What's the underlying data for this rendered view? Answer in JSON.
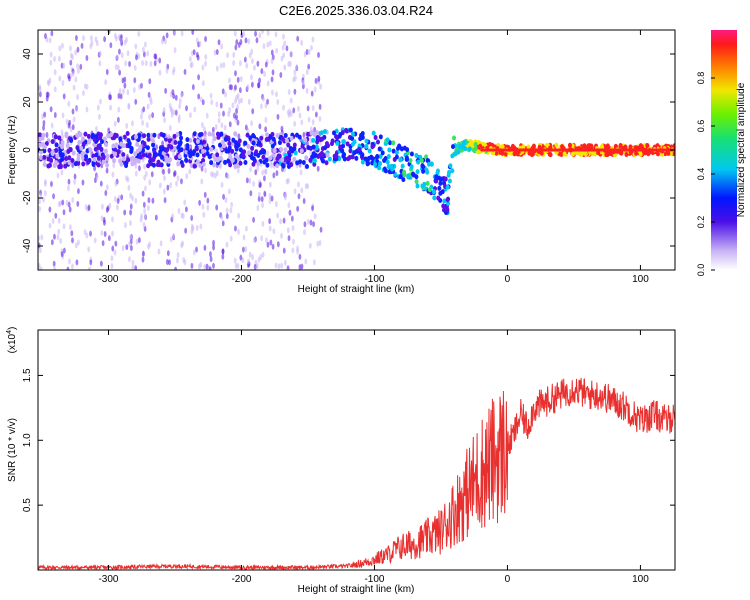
{
  "figure": {
    "title": "C2E6.2025.336.03.04.R24"
  },
  "chart_data": [
    {
      "type": "heatmap",
      "title": "C2E6.2025.336.03.04.R24",
      "xlabel": "Height of straight line (km)",
      "ylabel": "Frequency (Hz)",
      "xlim": [
        -353,
        126
      ],
      "ylim": [
        -50,
        50
      ],
      "xticks": [
        -300,
        -200,
        -100,
        0,
        100
      ],
      "xtick_labels": [
        "-300",
        "-200",
        "-100",
        "0",
        "100"
      ],
      "yticks": [
        -40,
        -20,
        0,
        20,
        40
      ],
      "ytick_labels": [
        "-40",
        "-20",
        "0",
        "20",
        "40"
      ],
      "colorbar": {
        "label": "Normalized spectral amplitude",
        "range": [
          0.0,
          1.0
        ],
        "ticks": [
          0.0,
          0.2,
          0.4,
          0.6,
          0.8
        ],
        "tick_labels": [
          "0.0",
          "0.2",
          "0.4",
          "0.6",
          "0.8"
        ]
      },
      "description_points": {
        "x": [
          -353,
          -300,
          -250,
          -200,
          -150,
          -120,
          -100,
          -80,
          -60,
          -45,
          -40,
          -30,
          -20,
          0,
          50,
          100,
          126
        ],
        "center_freq_hz": [
          0,
          0,
          0,
          0,
          0,
          3,
          0,
          -5,
          -10,
          -20,
          0,
          2,
          1,
          0,
          0,
          0,
          0
        ],
        "amplitude": [
          0.2,
          0.25,
          0.25,
          0.25,
          0.3,
          0.35,
          0.4,
          0.45,
          0.45,
          0.35,
          0.5,
          0.6,
          0.8,
          0.9,
          0.9,
          0.9,
          0.9
        ]
      }
    },
    {
      "type": "line",
      "xlabel": "Height of straight line (km)",
      "ylabel": "SNR (10 * v/v)",
      "y_multiplier": "(x10",
      "y_multiplier_exp": "4",
      "xlim": [
        -353,
        126
      ],
      "ylim": [
        0,
        1.85
      ],
      "xticks": [
        -300,
        -200,
        -100,
        0,
        100
      ],
      "xtick_labels": [
        "-300",
        "-200",
        "-100",
        "0",
        "100"
      ],
      "yticks": [
        0.5,
        1.0,
        1.5
      ],
      "ytick_labels": [
        "0.5",
        "1.0",
        "1.5"
      ],
      "series": [
        {
          "color": "#e8302f",
          "x": [
            -353,
            -300,
            -250,
            -200,
            -150,
            -120,
            -110,
            -100,
            -90,
            -80,
            -70,
            -60,
            -50,
            -40,
            -30,
            -20,
            -10,
            0,
            5,
            10,
            15,
            20,
            30,
            40,
            50,
            60,
            70,
            80,
            90,
            100,
            110,
            120,
            126
          ],
          "y": [
            0.02,
            0.02,
            0.03,
            0.02,
            0.02,
            0.03,
            0.05,
            0.08,
            0.12,
            0.18,
            0.2,
            0.25,
            0.3,
            0.45,
            0.6,
            0.75,
            0.85,
            0.95,
            1.05,
            1.2,
            1.1,
            1.25,
            1.3,
            1.35,
            1.4,
            1.35,
            1.35,
            1.3,
            1.25,
            1.15,
            1.2,
            1.15,
            1.2
          ]
        }
      ]
    }
  ]
}
